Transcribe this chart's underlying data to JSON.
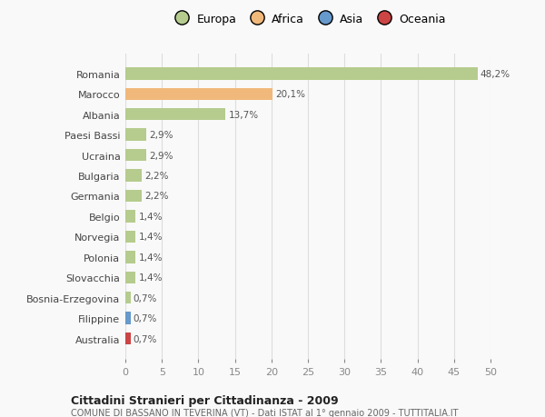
{
  "countries": [
    "Romania",
    "Marocco",
    "Albania",
    "Paesi Bassi",
    "Ucraina",
    "Bulgaria",
    "Germania",
    "Belgio",
    "Norvegia",
    "Polonia",
    "Slovacchia",
    "Bosnia-Erzegovina",
    "Filippine",
    "Australia"
  ],
  "values": [
    48.2,
    20.1,
    13.7,
    2.9,
    2.9,
    2.2,
    2.2,
    1.4,
    1.4,
    1.4,
    1.4,
    0.7,
    0.7,
    0.7
  ],
  "labels": [
    "48,2%",
    "20,1%",
    "13,7%",
    "2,9%",
    "2,9%",
    "2,2%",
    "2,2%",
    "1,4%",
    "1,4%",
    "1,4%",
    "1,4%",
    "0,7%",
    "0,7%",
    "0,7%"
  ],
  "colors": [
    "#b5cc8e",
    "#f0b87a",
    "#b5cc8e",
    "#b5cc8e",
    "#b5cc8e",
    "#b5cc8e",
    "#b5cc8e",
    "#b5cc8e",
    "#b5cc8e",
    "#b5cc8e",
    "#b5cc8e",
    "#b5cc8e",
    "#6699cc",
    "#cc4444"
  ],
  "continent_colors": {
    "Europa": "#b5cc8e",
    "Africa": "#f0b87a",
    "Asia": "#6699cc",
    "Oceania": "#cc4444"
  },
  "xlim": [
    0,
    50
  ],
  "xticks": [
    0,
    5,
    10,
    15,
    20,
    25,
    30,
    35,
    40,
    45,
    50
  ],
  "title": "Cittadini Stranieri per Cittadinanza - 2009",
  "subtitle": "COMUNE DI BASSANO IN TEVERINA (VT) - Dati ISTAT al 1° gennaio 2009 - TUTTITALIA.IT",
  "background_color": "#f9f9f9",
  "bar_height": 0.6,
  "grid_color": "#dddddd"
}
